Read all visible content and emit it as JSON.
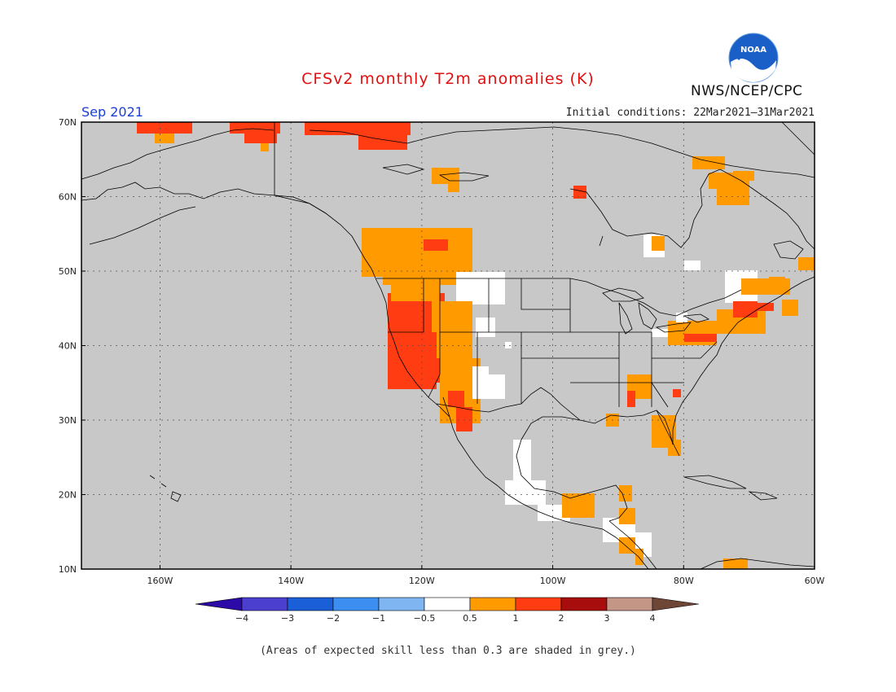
{
  "header": {
    "title": "CFSv2 monthly T2m anomalies (K)",
    "month": "Sep 2021",
    "initial_conditions": "Initial conditions: 22Mar2021–31Mar2021",
    "agency": "NWS/NCEP/CPC",
    "logo_text": "NOAA"
  },
  "map": {
    "lon_range": [
      -172,
      -60
    ],
    "lat_range": [
      10,
      70
    ],
    "lat_labels": [
      "70N",
      "60N",
      "50N",
      "40N",
      "30N",
      "20N",
      "10N"
    ],
    "lon_labels": [
      "160W",
      "140W",
      "120W",
      "100W",
      "80W",
      "60W"
    ],
    "background_color": "#c8c8c8",
    "coastline_color": "#000000"
  },
  "legend": {
    "colors": [
      "#2c0aa8",
      "#4a3fcf",
      "#1b5fd8",
      "#3c8ff0",
      "#7fb6f2",
      "#ffffff",
      "#ff9a00",
      "#ff3c12",
      "#a70d0d",
      "#c49686",
      "#6e4636"
    ],
    "tick_labels": [
      "−4",
      "−3",
      "−2",
      "−1",
      "−0.5",
      "0.5",
      "1",
      "2",
      "3",
      "4"
    ]
  },
  "footnote": "(Areas of expected skill less than 0.3 are shaded in grey.)"
}
